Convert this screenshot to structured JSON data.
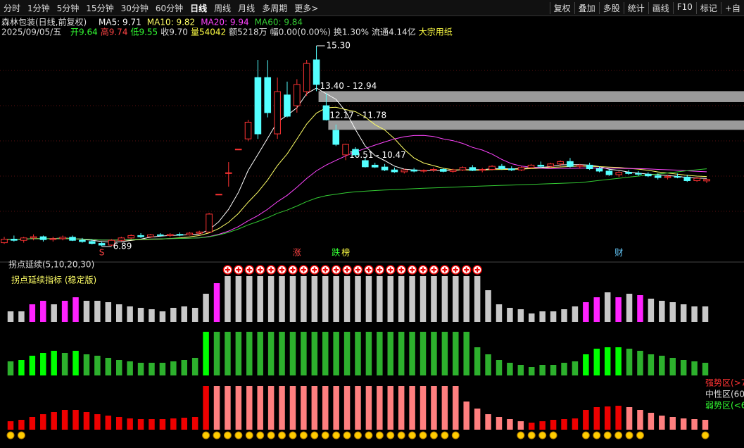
{
  "toolbar": {
    "tabs": [
      "分时",
      "1分钟",
      "5分钟",
      "15分钟",
      "30分钟",
      "60分钟",
      "日线",
      "周线",
      "月线",
      "多周期",
      "更多>"
    ],
    "active": 6,
    "tools": [
      "复权",
      "叠加",
      "多股",
      "统计",
      "画线",
      "F10",
      "标记",
      "+自"
    ]
  },
  "header": {
    "stock": "森林包装(日线,前复权)",
    "date": "2025/09/05/五",
    "ma": [
      {
        "text": "MA5: 9.71",
        "period": 5,
        "color": "#ffffff"
      },
      {
        "text": "MA10: 9.82",
        "period": 10,
        "color": "#ffff66"
      },
      {
        "text": "MA20: 9.94",
        "period": 20,
        "color": "#ff44ff"
      },
      {
        "text": "MA60: 9.84",
        "period": 60,
        "color": "#33cc33"
      }
    ],
    "quote": [
      {
        "text": "开9.64",
        "color": "#33ff33"
      },
      {
        "text": "高9.74",
        "color": "#ff4444"
      },
      {
        "text": "低9.55",
        "color": "#33ff33"
      },
      {
        "text": "收9.70",
        "color": "#dddddd"
      },
      {
        "text": "量54042",
        "color": "#ffff44"
      },
      {
        "text": "额5218万",
        "color": "#dddddd"
      },
      {
        "text": "幅0.00(0.00%)",
        "color": "#dddddd"
      },
      {
        "text": "换1.30%",
        "color": "#dddddd"
      },
      {
        "text": "流通4.14亿",
        "color": "#dddddd"
      },
      {
        "text": "大宗用纸",
        "color": "#ffff44"
      }
    ]
  },
  "price": {
    "up_color": "#ff3333",
    "down_color": "#54ffff",
    "candles": [
      [
        7.05,
        7.3,
        7.0,
        7.2
      ],
      [
        7.2,
        7.35,
        7.1,
        7.15
      ],
      [
        7.15,
        7.3,
        7.05,
        7.25
      ],
      [
        7.25,
        7.4,
        7.15,
        7.3
      ],
      [
        7.3,
        7.35,
        7.1,
        7.18
      ],
      [
        7.18,
        7.3,
        7.1,
        7.22
      ],
      [
        7.22,
        7.35,
        7.15,
        7.28
      ],
      [
        7.28,
        7.35,
        7.12,
        7.15
      ],
      [
        7.15,
        7.25,
        7.05,
        7.1
      ],
      [
        7.1,
        7.2,
        6.98,
        7.02
      ],
      [
        7.02,
        7.1,
        6.89,
        6.95
      ],
      [
        6.95,
        7.2,
        6.92,
        7.15
      ],
      [
        7.15,
        7.3,
        7.1,
        7.25
      ],
      [
        7.25,
        7.4,
        7.2,
        7.35
      ],
      [
        7.35,
        7.45,
        7.25,
        7.3
      ],
      [
        7.3,
        7.42,
        7.25,
        7.38
      ],
      [
        7.38,
        7.45,
        7.3,
        7.35
      ],
      [
        7.35,
        7.45,
        7.28,
        7.4
      ],
      [
        7.4,
        7.48,
        7.32,
        7.38
      ],
      [
        7.38,
        7.5,
        7.35,
        7.45
      ],
      [
        7.45,
        7.55,
        7.4,
        7.5
      ],
      [
        7.5,
        8.3,
        7.5,
        8.25
      ],
      [
        9.08,
        9.08,
        9.08,
        9.08
      ],
      [
        9.98,
        10.43,
        9.4,
        9.98
      ],
      [
        10.97,
        10.97,
        10.97,
        10.97
      ],
      [
        11.4,
        12.2,
        11.3,
        12.1
      ],
      [
        13.97,
        14.71,
        11.4,
        11.61
      ],
      [
        13.97,
        14.7,
        12.3,
        12.5
      ],
      [
        11.61,
        13.97,
        11.4,
        13.38
      ],
      [
        13.24,
        13.8,
        12.3,
        12.35
      ],
      [
        12.79,
        13.9,
        12.5,
        13.68
      ],
      [
        13.38,
        14.71,
        13.2,
        14.56
      ],
      [
        14.71,
        15.3,
        13.4,
        13.68
      ],
      [
        12.79,
        13.3,
        12.17,
        12.2
      ],
      [
        11.76,
        12.0,
        11.1,
        11.17
      ],
      [
        10.73,
        11.2,
        10.51,
        11.17
      ],
      [
        10.96,
        11.05,
        10.65,
        10.73
      ],
      [
        10.49,
        10.6,
        10.2,
        10.23
      ],
      [
        10.3,
        10.4,
        10.18,
        10.22
      ],
      [
        10.22,
        10.35,
        10.05,
        10.1
      ],
      [
        10.1,
        10.2,
        9.98,
        10.02
      ],
      [
        10.02,
        10.15,
        9.95,
        10.1
      ],
      [
        10.1,
        10.18,
        10.0,
        10.05
      ],
      [
        10.05,
        10.12,
        9.98,
        10.08
      ],
      [
        10.08,
        10.2,
        10.02,
        10.12
      ],
      [
        10.12,
        10.18,
        10.0,
        10.04
      ],
      [
        10.04,
        10.15,
        9.98,
        10.1
      ],
      [
        10.1,
        10.25,
        10.05,
        10.2
      ],
      [
        10.2,
        10.3,
        10.05,
        10.08
      ],
      [
        10.08,
        10.18,
        10.0,
        10.12
      ],
      [
        10.12,
        10.3,
        10.08,
        10.25
      ],
      [
        10.25,
        10.35,
        10.1,
        10.15
      ],
      [
        10.15,
        10.25,
        10.05,
        10.1
      ],
      [
        10.1,
        10.25,
        10.05,
        10.2
      ],
      [
        10.2,
        10.35,
        10.15,
        10.3
      ],
      [
        10.3,
        10.45,
        10.2,
        10.25
      ],
      [
        10.25,
        10.4,
        10.2,
        10.35
      ],
      [
        10.35,
        10.5,
        10.25,
        10.45
      ],
      [
        10.45,
        10.6,
        10.2,
        10.25
      ],
      [
        10.25,
        10.35,
        10.15,
        10.3
      ],
      [
        10.3,
        10.4,
        10.1,
        10.15
      ],
      [
        10.15,
        10.25,
        10.0,
        10.05
      ],
      [
        10.05,
        10.15,
        9.85,
        9.9
      ],
      [
        9.9,
        10.05,
        9.8,
        10.0
      ],
      [
        10.0,
        10.1,
        9.9,
        9.95
      ],
      [
        9.95,
        10.05,
        9.85,
        9.92
      ],
      [
        9.92,
        10.0,
        9.8,
        9.85
      ],
      [
        9.85,
        9.95,
        9.7,
        9.78
      ],
      [
        9.78,
        9.9,
        9.7,
        9.82
      ],
      [
        9.82,
        9.95,
        9.75,
        9.8
      ],
      [
        9.8,
        9.9,
        9.6,
        9.65
      ],
      [
        9.65,
        9.8,
        9.6,
        9.75
      ],
      [
        9.64,
        9.74,
        9.55,
        9.7
      ]
    ],
    "high_label": {
      "index": 32,
      "text": "15.30"
    },
    "low_label": {
      "index": 10,
      "text": "6.89"
    },
    "zones": [
      {
        "index": 32,
        "label": "13.40 - 12.94",
        "high": 13.4,
        "low": 12.94,
        "show_band": true
      },
      {
        "index": 33,
        "label": "12.17 - 11.78",
        "high": 12.17,
        "low": 11.78,
        "show_band": true
      },
      {
        "index": 35,
        "label": "10.51 - 10.47",
        "high": 10.51,
        "low": 10.47,
        "show_band": false
      }
    ],
    "events": [
      {
        "index": 10,
        "text": "S",
        "color": "#ff4444"
      },
      {
        "index": 30,
        "text": "涨",
        "color": "#ff4444"
      },
      {
        "index": 34,
        "text": "跌",
        "color": "#33ff33"
      },
      {
        "index": 35,
        "text": "榜",
        "color": "#ffff44"
      },
      {
        "index": 63,
        "text": "财",
        "color": "#66ccff"
      }
    ]
  },
  "indicator": {
    "title": "拐点延续(5,10,20,30)",
    "subtitle": "拐点延续指标 (稳定版)",
    "rows": [
      {
        "values": [
          15,
          15,
          25,
          30,
          25,
          30,
          35,
          30,
          30,
          28,
          25,
          22,
          20,
          18,
          15,
          20,
          22,
          20,
          40,
          55,
          65,
          65,
          65,
          65,
          65,
          65,
          65,
          65,
          65,
          65,
          65,
          65,
          65,
          65,
          65,
          65,
          65,
          65,
          65,
          65,
          65,
          65,
          65,
          65,
          45,
          25,
          20,
          18,
          12,
          15,
          15,
          18,
          22,
          28,
          35,
          42,
          35,
          40,
          38,
          33,
          30,
          28,
          25,
          22,
          22
        ],
        "colors": [
          "#c8c8c8",
          "#c8c8c8",
          "#ff22ff",
          "#ff22ff",
          "#c8c8c8",
          "#ff22ff",
          "#ff22ff",
          "#c8c8c8",
          "#c8c8c8",
          "#c8c8c8",
          "#c8c8c8",
          "#c8c8c8",
          "#c8c8c8",
          "#c8c8c8",
          "#c8c8c8",
          "#c8c8c8",
          "#c8c8c8",
          "#c8c8c8",
          "#c8c8c8",
          "#ff22ff",
          "#c8c8c8",
          "#c8c8c8",
          "#c8c8c8",
          "#c8c8c8",
          "#c8c8c8",
          "#c8c8c8",
          "#c8c8c8",
          "#c8c8c8",
          "#c8c8c8",
          "#c8c8c8",
          "#c8c8c8",
          "#c8c8c8",
          "#c8c8c8",
          "#c8c8c8",
          "#c8c8c8",
          "#c8c8c8",
          "#c8c8c8",
          "#c8c8c8",
          "#c8c8c8",
          "#c8c8c8",
          "#c8c8c8",
          "#c8c8c8",
          "#c8c8c8",
          "#c8c8c8",
          "#c8c8c8",
          "#c8c8c8",
          "#c8c8c8",
          "#c8c8c8",
          "#c8c8c8",
          "#c8c8c8",
          "#c8c8c8",
          "#c8c8c8",
          "#c8c8c8",
          "#ff22ff",
          "#ff22ff",
          "#c8c8c8",
          "#ff22ff",
          "#c8c8c8",
          "#ff22ff",
          "#c8c8c8",
          "#c8c8c8",
          "#c8c8c8",
          "#c8c8c8",
          "#c8c8c8",
          "#c8c8c8"
        ]
      },
      {
        "values": [
          20,
          22,
          28,
          32,
          35,
          32,
          35,
          30,
          28,
          25,
          22,
          20,
          18,
          18,
          18,
          20,
          22,
          25,
          62,
          62,
          62,
          62,
          62,
          62,
          62,
          62,
          62,
          62,
          62,
          62,
          62,
          62,
          62,
          62,
          62,
          62,
          62,
          62,
          62,
          62,
          62,
          62,
          62,
          40,
          30,
          22,
          18,
          15,
          12,
          15,
          15,
          18,
          20,
          30,
          38,
          40,
          40,
          38,
          35,
          30,
          28,
          25,
          22,
          20,
          18
        ],
        "colors": [
          "#2db02d",
          "#00ff00",
          "#00ff00",
          "#00ff00",
          "#00ff00",
          "#2db02d",
          "#00ff00",
          "#2db02d",
          "#2db02d",
          "#2db02d",
          "#2db02d",
          "#2db02d",
          "#2db02d",
          "#2db02d",
          "#2db02d",
          "#2db02d",
          "#2db02d",
          "#2db02d",
          "#00ff00",
          "#2db02d",
          "#2db02d",
          "#2db02d",
          "#2db02d",
          "#2db02d",
          "#2db02d",
          "#2db02d",
          "#2db02d",
          "#2db02d",
          "#2db02d",
          "#2db02d",
          "#2db02d",
          "#2db02d",
          "#2db02d",
          "#2db02d",
          "#2db02d",
          "#2db02d",
          "#2db02d",
          "#2db02d",
          "#2db02d",
          "#2db02d",
          "#2db02d",
          "#2db02d",
          "#2db02d",
          "#2db02d",
          "#2db02d",
          "#2db02d",
          "#2db02d",
          "#2db02d",
          "#2db02d",
          "#2db02d",
          "#2db02d",
          "#2db02d",
          "#2db02d",
          "#00ff00",
          "#00ff00",
          "#00ff00",
          "#00ff00",
          "#2db02d",
          "#2db02d",
          "#2db02d",
          "#2db02d",
          "#2db02d",
          "#2db02d",
          "#2db02d",
          "#2db02d"
        ]
      },
      {
        "values": [
          12,
          14,
          18,
          22,
          25,
          28,
          28,
          25,
          22,
          20,
          18,
          16,
          15,
          15,
          15,
          16,
          17,
          18,
          62,
          62,
          62,
          62,
          62,
          62,
          62,
          62,
          62,
          62,
          62,
          62,
          62,
          62,
          62,
          62,
          62,
          62,
          62,
          62,
          62,
          62,
          62,
          62,
          40,
          30,
          22,
          18,
          15,
          12,
          10,
          12,
          14,
          15,
          16,
          28,
          32,
          33,
          34,
          32,
          28,
          24,
          20,
          18,
          16,
          15,
          14
        ],
        "colors": [
          "#ee0000",
          "#ee0000",
          "#ee0000",
          "#ee0000",
          "#ee0000",
          "#ee0000",
          "#ee0000",
          "#ee0000",
          "#ee0000",
          "#ee0000",
          "#ee0000",
          "#ee0000",
          "#ee0000",
          "#ee0000",
          "#ee0000",
          "#ee0000",
          "#ee0000",
          "#ee0000",
          "#ee0000",
          "#ff7f7f",
          "#ff7f7f",
          "#ff7f7f",
          "#ff7f7f",
          "#ff7f7f",
          "#ff7f7f",
          "#ff7f7f",
          "#ff7f7f",
          "#ff7f7f",
          "#ff7f7f",
          "#ff7f7f",
          "#ff7f7f",
          "#ff7f7f",
          "#ff7f7f",
          "#ff7f7f",
          "#ff7f7f",
          "#ff7f7f",
          "#ff7f7f",
          "#ff7f7f",
          "#ff7f7f",
          "#ff7f7f",
          "#ff7f7f",
          "#ff7f7f",
          "#ff7f7f",
          "#ff7f7f",
          "#ff7f7f",
          "#ff7f7f",
          "#ff7f7f",
          "#ff7f7f",
          "#ee0000",
          "#ee0000",
          "#ee0000",
          "#ee0000",
          "#ee0000",
          "#ee0000",
          "#ee0000",
          "#ee0000",
          "#ee0000",
          "#ff7f7f",
          "#ff7f7f",
          "#ff7f7f",
          "#ff7f7f",
          "#ff7f7f",
          "#ff7f7f",
          "#ff7f7f",
          "#ff7f7f"
        ]
      }
    ],
    "zone_labels": [
      {
        "text": "强势区(>7",
        "color": "#ff3333"
      },
      {
        "text": "中性区(60",
        "color": "#dddddd"
      },
      {
        "text": "弱势区(<6",
        "color": "#33ff33"
      }
    ]
  }
}
